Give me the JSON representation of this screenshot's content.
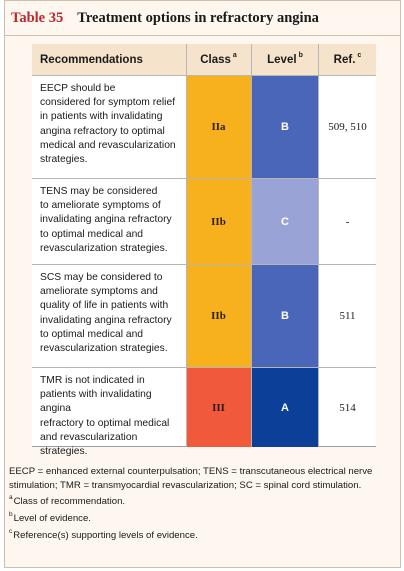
{
  "table": {
    "number": "Table 35",
    "title": "Treatment options in refractory angina",
    "headers": {
      "recommendations": "Recommendations",
      "class": "Class",
      "class_mark": "a",
      "level": "Level",
      "level_mark": "b",
      "ref": "Ref.",
      "ref_mark": "c"
    },
    "rows": [
      {
        "text": "EECP should be\nconsidered for symptom relief\nin patients with invalidating\nangina refractory to optimal\nmedical and revascularization\nstrategies.",
        "class": "IIa",
        "level": "B",
        "ref": "509, 510",
        "class_color": "#f7b11d",
        "level_color": "#4a66b8"
      },
      {
        "text": "TENS may be considered\nto ameliorate symptoms of\ninvalidating angina refractory\nto optimal medical and\nrevascularization strategies.",
        "class": "IIb",
        "level": "C",
        "ref": "-",
        "class_color": "#f7b11d",
        "level_color": "#9aa3d6"
      },
      {
        "text": "SCS may be considered to\nameliorate symptoms and\nquality of life in patients with\ninvalidating angina refractory\nto optimal medical and\nrevascularization strategies.",
        "class": "IIb",
        "level": "B",
        "ref": "511",
        "class_color": "#f7b11d",
        "level_color": "#4a66b8"
      },
      {
        "text": "TMR is not indicated in\npatients with invalidating angina\nrefractory to optimal medical\nand revascularization strategies.",
        "class": "III",
        "level": "A",
        "ref": "514",
        "class_color": "#f05a3a",
        "level_color": "#0b3f98"
      }
    ]
  },
  "footnotes": {
    "abbreviations": "EECP = enhanced external counterpulsation; TENS = transcutaneous electrical nerve stimulation; TMR = transmyocardial revascularization; SC = spinal cord stimulation.",
    "notes": [
      {
        "mark": "a",
        "text": "Class of recommendation."
      },
      {
        "mark": "b",
        "text": "Level of evidence."
      },
      {
        "mark": "c",
        "text": "Reference(s) supporting levels of evidence."
      }
    ]
  },
  "colors": {
    "title_red": "#c0262d",
    "frame_background": "#fdf7ef",
    "header_background": "#f6e3cc"
  }
}
